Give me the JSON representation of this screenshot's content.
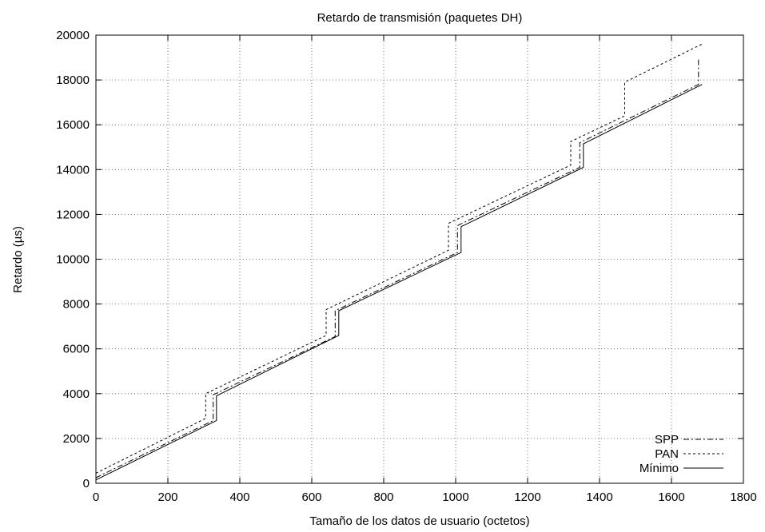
{
  "chart_data": {
    "type": "line",
    "title": "Retardo de transmisión (paquetes DH)",
    "xlabel": "Tamaño de los datos de usuario (octetos)",
    "ylabel": "Retardo (µs)",
    "xlim": [
      0,
      1800
    ],
    "ylim": [
      0,
      20000
    ],
    "xticks": [
      0,
      200,
      400,
      600,
      800,
      1000,
      1200,
      1400,
      1600,
      1800
    ],
    "xtick_labels": [
      "0",
      "200",
      "400",
      "600",
      "800",
      "1000",
      "1200",
      "1400",
      "1600",
      "1800"
    ],
    "yticks": [
      0,
      2000,
      4000,
      6000,
      8000,
      10000,
      12000,
      14000,
      16000,
      18000,
      20000
    ],
    "ytick_labels": [
      "0",
      "2000",
      "4000",
      "6000",
      "8000",
      "10000",
      "12000",
      "14000",
      "16000",
      "18000",
      "20000"
    ],
    "grid": true,
    "legend_position": "bottom-right",
    "series": [
      {
        "name": "SPP",
        "style": "dash-dot",
        "points": [
          [
            0,
            250
          ],
          [
            326,
            2800
          ],
          [
            326,
            3950
          ],
          [
            665,
            6550
          ],
          [
            665,
            7700
          ],
          [
            1005,
            10300
          ],
          [
            1005,
            11500
          ],
          [
            1345,
            14100
          ],
          [
            1345,
            15200
          ],
          [
            1675,
            17800
          ],
          [
            1675,
            19000
          ]
        ]
      },
      {
        "name": "PAN",
        "style": "dashed",
        "points": [
          [
            0,
            450
          ],
          [
            305,
            2900
          ],
          [
            305,
            4000
          ],
          [
            640,
            6600
          ],
          [
            640,
            7750
          ],
          [
            980,
            10400
          ],
          [
            980,
            11600
          ],
          [
            1320,
            14200
          ],
          [
            1320,
            15250
          ],
          [
            1470,
            16400
          ],
          [
            1470,
            17900
          ],
          [
            1685,
            19600
          ]
        ]
      },
      {
        "name": "Mínimo",
        "style": "solid",
        "points": [
          [
            0,
            150
          ],
          [
            335,
            2800
          ],
          [
            335,
            3900
          ],
          [
            675,
            6600
          ],
          [
            675,
            7700
          ],
          [
            1015,
            10300
          ],
          [
            1015,
            11450
          ],
          [
            1355,
            14100
          ],
          [
            1355,
            15150
          ],
          [
            1685,
            17800
          ]
        ]
      }
    ]
  }
}
